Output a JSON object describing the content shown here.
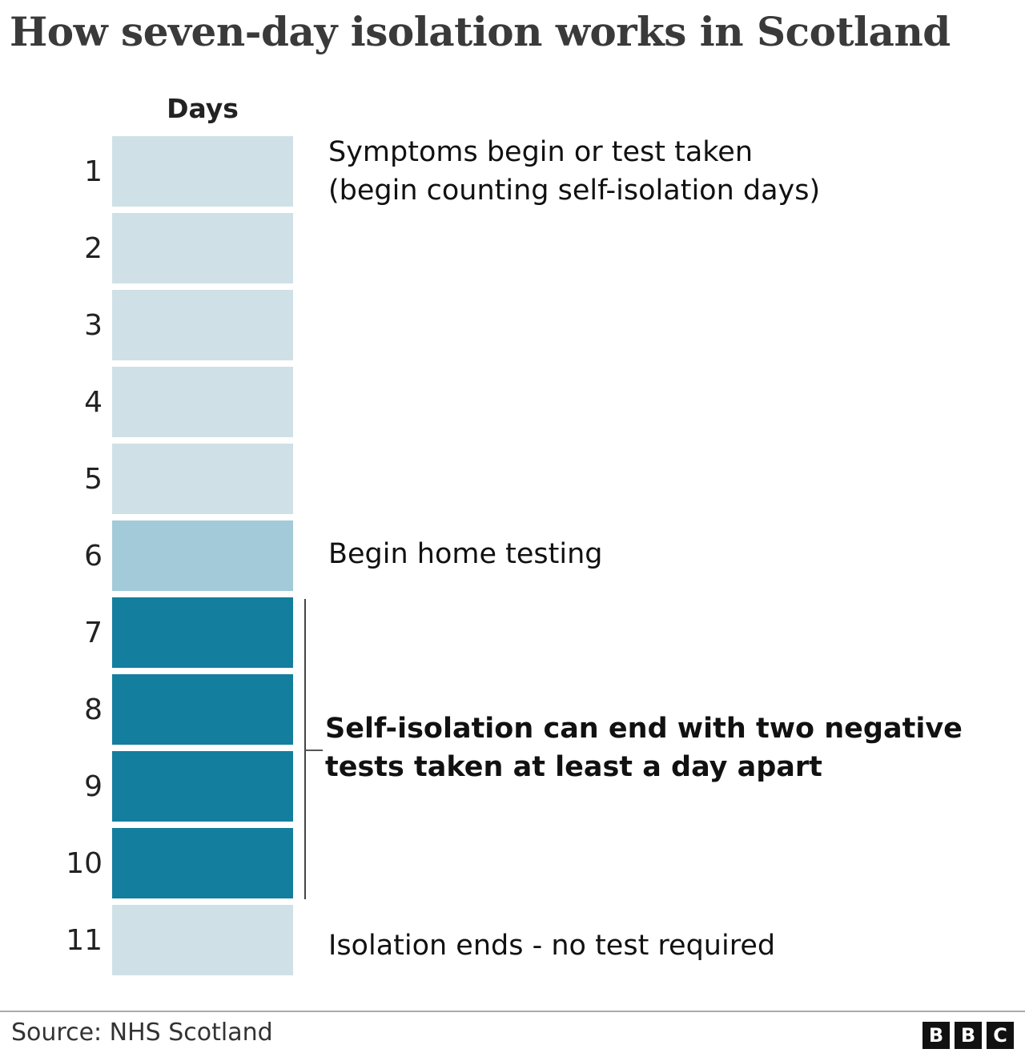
{
  "title": "How seven-day isolation works in Scotland",
  "days_header": "Days",
  "colors": {
    "light": "#cfe1e6",
    "mid": "#a3cad8",
    "dark": "#147e9e"
  },
  "days": [
    {
      "n": "1",
      "shade": "light"
    },
    {
      "n": "2",
      "shade": "light"
    },
    {
      "n": "3",
      "shade": "light"
    },
    {
      "n": "4",
      "shade": "light"
    },
    {
      "n": "5",
      "shade": "light"
    },
    {
      "n": "6",
      "shade": "mid"
    },
    {
      "n": "7",
      "shade": "dark"
    },
    {
      "n": "8",
      "shade": "dark"
    },
    {
      "n": "9",
      "shade": "dark"
    },
    {
      "n": "10",
      "shade": "dark"
    },
    {
      "n": "11",
      "shade": "light"
    }
  ],
  "annotations": {
    "day1_line1": "Symptoms begin or test taken",
    "day1_line2": "(begin counting self-isolation days)",
    "day6": "Begin home testing",
    "days7_10_line1": "Self-isolation can end with two negative",
    "days7_10_line2": "tests taken at least a day apart",
    "day11": "Isolation ends - no test required"
  },
  "footer": {
    "source": "Source: NHS Scotland",
    "logo": [
      "B",
      "B",
      "C"
    ]
  }
}
